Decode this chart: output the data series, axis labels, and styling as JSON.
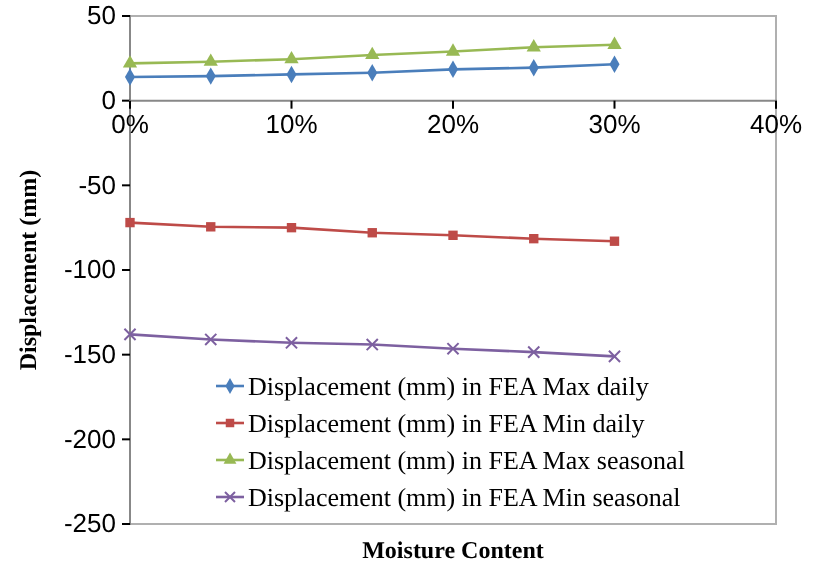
{
  "chart_data": {
    "type": "line",
    "xlabel": "Moisture Content",
    "ylabel": "Displacement (mm)",
    "x": [
      0,
      5,
      10,
      15,
      20,
      25,
      30
    ],
    "xlim": [
      0,
      40
    ],
    "xticks": [
      {
        "value": 0,
        "label": "0%"
      },
      {
        "value": 10,
        "label": "10%"
      },
      {
        "value": 20,
        "label": "20%"
      },
      {
        "value": 30,
        "label": "30%"
      },
      {
        "value": 40,
        "label": "40%"
      }
    ],
    "ylim": [
      -250,
      50
    ],
    "yticks": [
      -250,
      -200,
      -150,
      -100,
      -50,
      0,
      50
    ],
    "grid": false,
    "legend": "bottom",
    "series": [
      {
        "name": "Displacement (mm) in FEA Max daily",
        "color": "#4a7ebb",
        "marker": "diamond",
        "values": [
          14,
          14.5,
          15.5,
          16.5,
          18.5,
          19.5,
          21.5
        ]
      },
      {
        "name": "Displacement (mm) in FEA Min daily",
        "color": "#be4b48",
        "marker": "square",
        "values": [
          -72,
          -74.5,
          -75,
          -78,
          -79.5,
          -81.5,
          -83
        ]
      },
      {
        "name": "Displacement (mm) in FEA Max seasonal",
        "color": "#98b954",
        "marker": "triangle",
        "values": [
          22,
          23,
          24.5,
          27,
          29,
          31.5,
          33
        ]
      },
      {
        "name": "Displacement (mm) in FEA Min seasonal",
        "color": "#7d60a0",
        "marker": "cross",
        "values": [
          -138,
          -141,
          -143,
          -144,
          -146.5,
          -148.5,
          -151
        ]
      }
    ]
  }
}
